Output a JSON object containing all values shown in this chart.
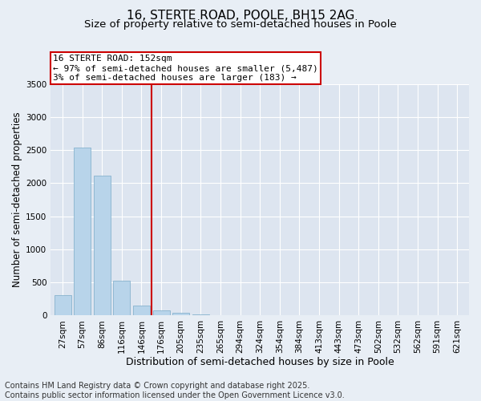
{
  "title1": "16, STERTE ROAD, POOLE, BH15 2AG",
  "title2": "Size of property relative to semi-detached houses in Poole",
  "xlabel": "Distribution of semi-detached houses by size in Poole",
  "ylabel": "Number of semi-detached properties",
  "categories": [
    "27sqm",
    "57sqm",
    "86sqm",
    "116sqm",
    "146sqm",
    "176sqm",
    "205sqm",
    "235sqm",
    "265sqm",
    "294sqm",
    "324sqm",
    "354sqm",
    "384sqm",
    "413sqm",
    "443sqm",
    "473sqm",
    "502sqm",
    "532sqm",
    "562sqm",
    "591sqm",
    "621sqm"
  ],
  "values": [
    310,
    2535,
    2115,
    525,
    150,
    80,
    45,
    20,
    10,
    0,
    0,
    0,
    0,
    0,
    0,
    0,
    0,
    0,
    0,
    0,
    0
  ],
  "bar_color": "#b8d4ea",
  "bar_edge_color": "#7aaac8",
  "ylim": [
    0,
    3500
  ],
  "yticks": [
    0,
    500,
    1000,
    1500,
    2000,
    2500,
    3000,
    3500
  ],
  "vline_x_index": 4.5,
  "vline_color": "#cc0000",
  "annotation_line1": "16 STERTE ROAD: 152sqm",
  "annotation_line2": "← 97% of semi-detached houses are smaller (5,487)",
  "annotation_line3": "3% of semi-detached houses are larger (183) →",
  "annotation_box_color": "#cc0000",
  "background_color": "#e8eef5",
  "plot_bg_color": "#dde5f0",
  "footer1": "Contains HM Land Registry data © Crown copyright and database right 2025.",
  "footer2": "Contains public sector information licensed under the Open Government Licence v3.0.",
  "title1_fontsize": 11,
  "title2_fontsize": 9.5,
  "xlabel_fontsize": 9,
  "ylabel_fontsize": 8.5,
  "tick_fontsize": 7.5,
  "footer_fontsize": 7,
  "annot_fontsize": 8
}
